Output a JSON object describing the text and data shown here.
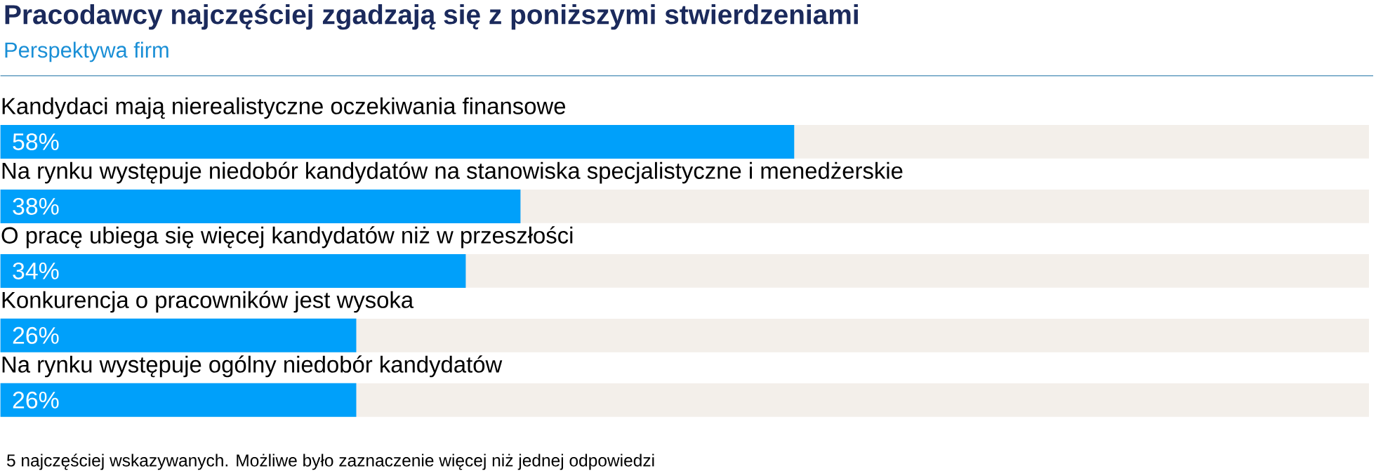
{
  "chart_data": {
    "type": "bar",
    "orientation": "horizontal",
    "title": "Pracodawcy najczęściej zgadzają się z poniższymi stwierdzeniami",
    "subtitle": "Perspektywa firm",
    "categories": [
      "Kandydaci mają nierealistyczne oczekiwania finansowe",
      "Na rynku występuje niedobór kandydatów na stanowiska specjalistyczne i menedżerskie",
      "O pracę ubiega się więcej kandydatów niż w przeszłości",
      "Konkurencja o pracowników jest wysoka",
      "Na rynku występuje ogólny niedobór kandydatów"
    ],
    "values": [
      58,
      38,
      34,
      26,
      26
    ],
    "color": "#00a0fa",
    "value_labels": [
      "58%",
      "38%",
      "34%",
      "26%",
      "26%"
    ],
    "xlim": [
      0,
      100
    ],
    "annotations": [
      "5 najczęściej wskazywanych. Możliwe było zaznaczenie więcej niż jednej odpowiedzi"
    ]
  }
}
